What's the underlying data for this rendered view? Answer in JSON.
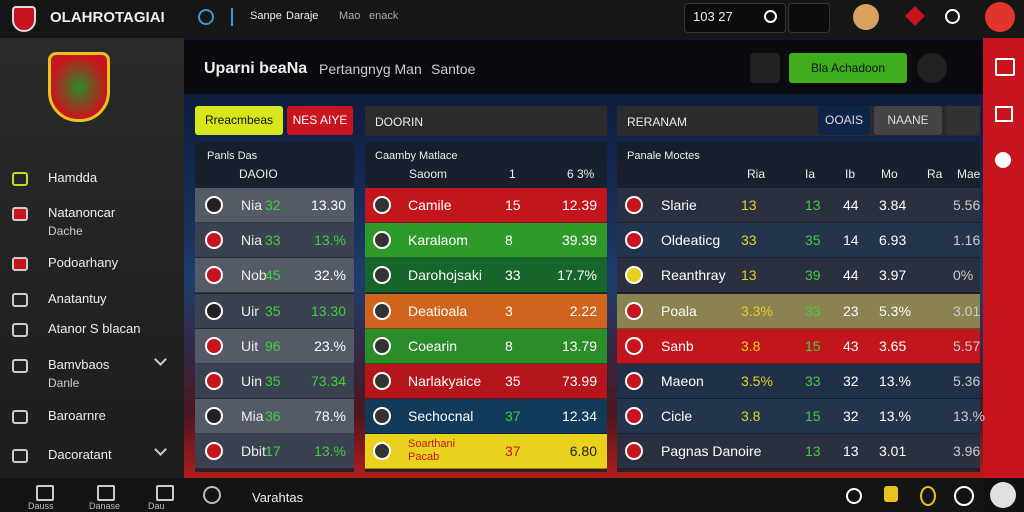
{
  "top": {
    "title": "OLAHROTAGIAI",
    "search": [
      "Sanpe",
      "Daraje",
      "Mao",
      "enack"
    ],
    "time": "103 27"
  },
  "sidebar": {
    "nav": [
      [
        "Hamdda"
      ],
      [
        "Natanoncar",
        "Dache"
      ],
      [
        "Podoarhany"
      ],
      [
        "Anatantuy"
      ],
      [
        "Atanor S blacan"
      ],
      [
        "Bamvbaos",
        "Danle"
      ],
      [
        "Baroarnre"
      ],
      [
        "Dacoratant"
      ]
    ],
    "footer": [
      "Dauss",
      "Danase",
      "Dau"
    ]
  },
  "header": {
    "title": "Uparni beaNa",
    "tabs": [
      "Pertangnyg Man",
      "Santoe"
    ],
    "button": "Bla Achadoon"
  },
  "panel1": {
    "buttons": [
      "Rreacmbeas",
      "NES AIYE"
    ],
    "header": [
      "Panls Das",
      "DAOIO"
    ],
    "rows": [
      [
        "Nia",
        "32",
        "13.30"
      ],
      [
        "Nia",
        "33",
        "13.%"
      ],
      [
        "Nob",
        "45",
        "32.%"
      ],
      [
        "Uir",
        "35",
        "13.30"
      ],
      [
        "Uit",
        "96",
        "23.%"
      ],
      [
        "Uin",
        "35",
        "73.34"
      ],
      [
        "Mia",
        "36",
        "78.%"
      ],
      [
        "Dbit",
        "17",
        "13.%"
      ]
    ]
  },
  "panel2": {
    "title": "DOORIN",
    "header": [
      "Caamby Matlace",
      "Saoom",
      "1",
      "6 3%"
    ],
    "rows": [
      {
        "cells": [
          "Camile",
          "15",
          "12.39"
        ],
        "color": "#c0161c"
      },
      {
        "cells": [
          "Karalaom",
          "8",
          "39.39"
        ],
        "color": "#2e9a2a"
      },
      {
        "cells": [
          "Darohojsaki",
          "33",
          "17.7%"
        ],
        "color": "#16652a"
      },
      {
        "cells": [
          "Deatioala",
          "3",
          "2.22"
        ],
        "color": "#d0641c"
      },
      {
        "cells": [
          "Coearin",
          "8",
          "13.79"
        ],
        "color": "#2a8d2a"
      },
      {
        "cells": [
          "Narlakyaice",
          "35",
          "73.99"
        ],
        "color": "#b5161c"
      },
      {
        "cells": [
          "Sechocnal",
          "37",
          "12.34"
        ],
        "color": "#123a5a"
      },
      {
        "cells": [
          "Soarthani Pacab",
          "37",
          "6.80"
        ],
        "color": "#e8d21e"
      }
    ]
  },
  "panel3": {
    "title": "RERANAM",
    "buttons": [
      "OOAIS",
      "NAANE"
    ],
    "header": [
      "Panale Moctes",
      "Ria",
      "Ia",
      "Ib",
      "Mo",
      "Ra",
      "Mae"
    ],
    "rows": [
      {
        "cells": [
          "Slarie",
          "13",
          "13",
          "44",
          "3.84",
          "5.56"
        ],
        "color": "#2a3040"
      },
      {
        "cells": [
          "Oldeaticg",
          "33",
          "35",
          "14",
          "6.93",
          "1.16"
        ],
        "color": "#24344c"
      },
      {
        "cells": [
          "Reanthray",
          "13",
          "39",
          "44",
          "3.97",
          "0%"
        ],
        "color": "#2a3040"
      },
      {
        "cells": [
          "Poala",
          "3.3%",
          "33",
          "23",
          "5.3%",
          "3.01"
        ],
        "color": "#8a8250"
      },
      {
        "cells": [
          "Sanb",
          "3.8",
          "15",
          "43",
          "3.65",
          "5.57"
        ],
        "color": "#c0161c"
      },
      {
        "cells": [
          "Maeon",
          "3.5%",
          "33",
          "32",
          "13.%",
          "5.36"
        ],
        "color": "#203048"
      },
      {
        "cells": [
          "Cicle",
          "3.8",
          "15",
          "32",
          "13.%",
          "13.%"
        ],
        "color": "#24344c"
      },
      {
        "cells": [
          "Pagnas Danoire",
          null,
          "13",
          "13",
          "3.01",
          "3.96"
        ],
        "color": "#2a3040"
      }
    ]
  },
  "bottom": {
    "label": "Varahtas"
  }
}
